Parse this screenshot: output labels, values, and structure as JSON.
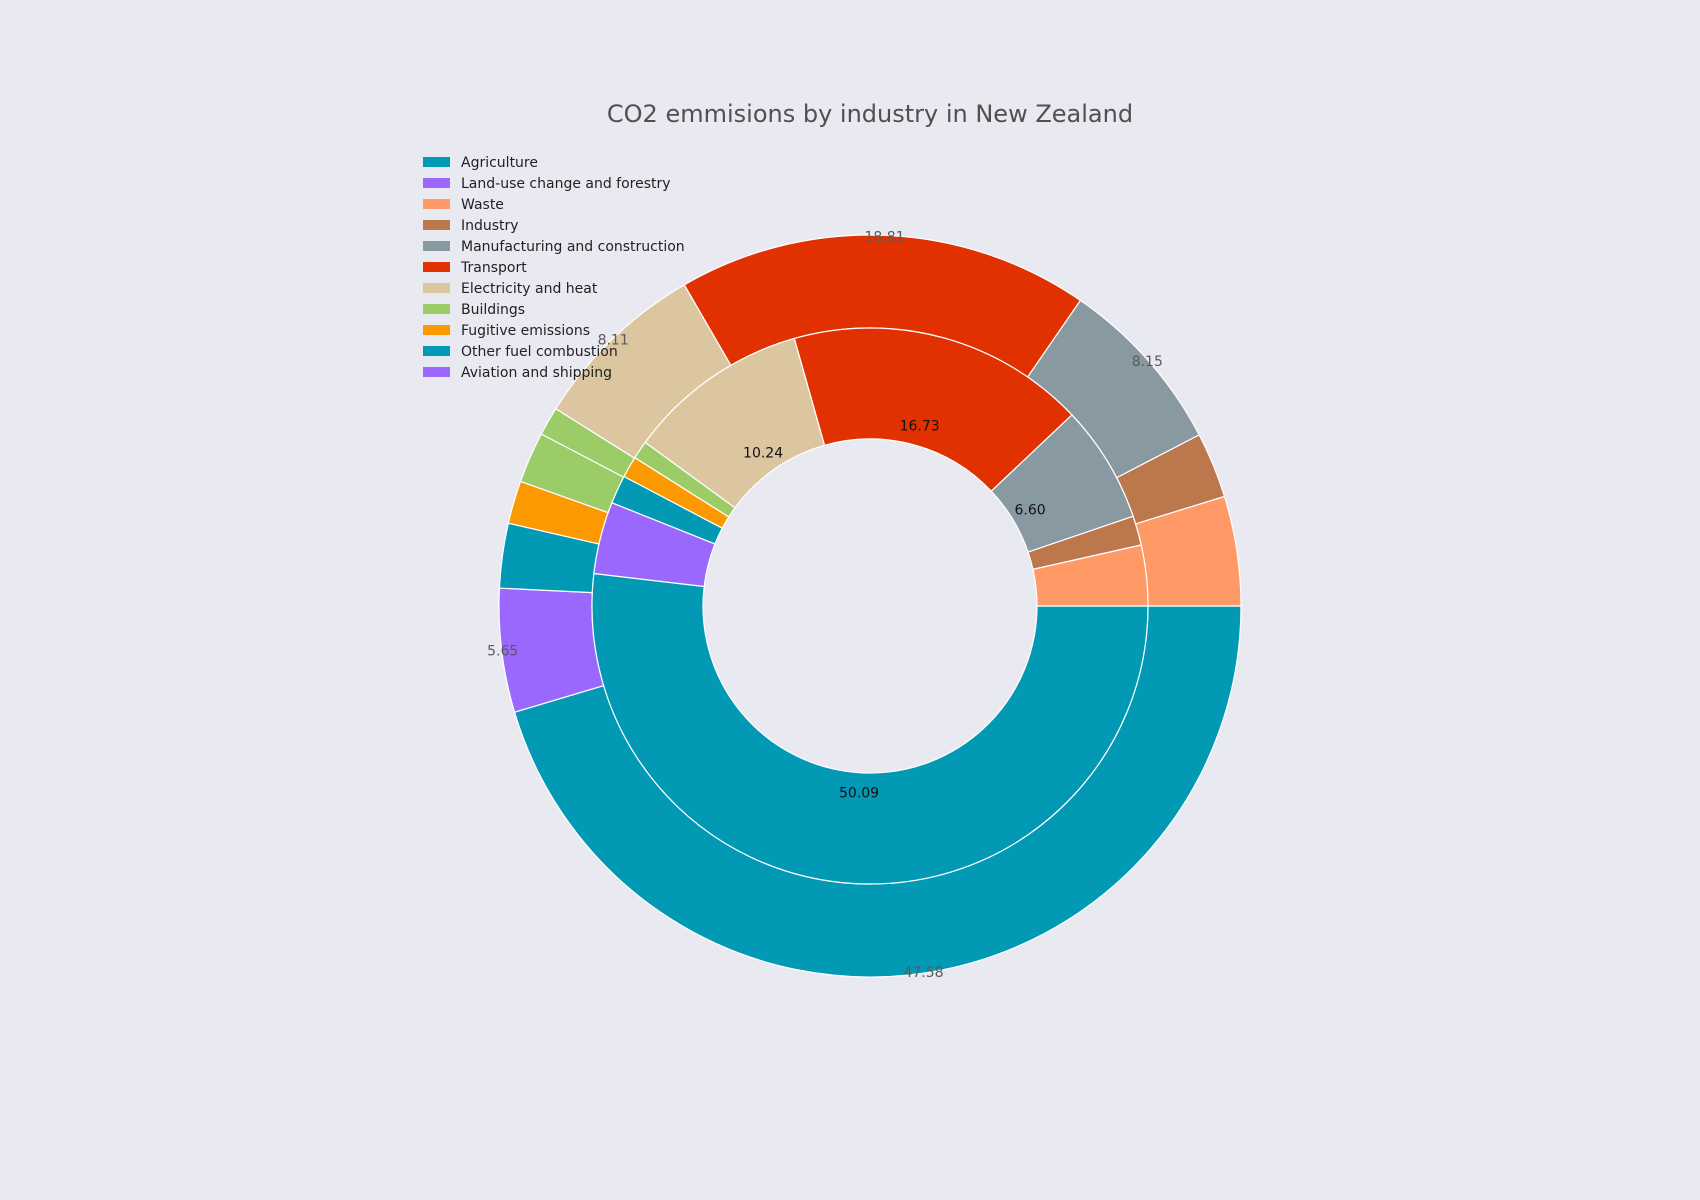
{
  "chart_data": {
    "type": "pie",
    "title": "CO2 emmisions by industry in New Zealand",
    "outer": {
      "values": [
        47.58,
        5.65,
        2.95,
        1.96,
        2.33,
        1.31,
        8.11,
        18.81,
        8.15,
        3.0,
        5.0
      ],
      "colors": [
        "#0199b4",
        "#9a68fc",
        "#0199b4",
        "#fc9900",
        "#9ccc68",
        "#9ccc68",
        "#dbc6a0",
        "#e23100",
        "#8899a2",
        "#bc774d",
        "#ff9966"
      ],
      "labels": [
        "47.58",
        "5.65",
        "",
        "",
        "",
        "",
        "8.11",
        "18.81",
        "8.15",
        "",
        ""
      ]
    },
    "inner": {
      "values": [
        50.09,
        4.05,
        1.6,
        1.2,
        1.02,
        10.24,
        16.73,
        6.6,
        1.65,
        3.4
      ],
      "colors": [
        "#0199b4",
        "#9a68fc",
        "#0199b4",
        "#fc9900",
        "#9ccc68",
        "#dbc6a0",
        "#e23100",
        "#8899a2",
        "#bc774d",
        "#ff9966"
      ],
      "labels": [
        "50.09",
        "",
        "",
        "",
        "",
        "10.24",
        "16.73",
        "6.60",
        "",
        ""
      ]
    },
    "legend": [
      {
        "name": "Agriculture",
        "color": "#0199b4"
      },
      {
        "name": "Land-use change and forestry",
        "color": "#9a68fc"
      },
      {
        "name": "Waste",
        "color": "#ff9966"
      },
      {
        "name": "Industry",
        "color": "#bc774d"
      },
      {
        "name": "Manufacturing and construction",
        "color": "#8899a2"
      },
      {
        "name": "Transport",
        "color": "#e23100"
      },
      {
        "name": "Electricity and heat",
        "color": "#dbc6a0"
      },
      {
        "name": "Buildings",
        "color": "#9ccc68"
      },
      {
        "name": "Fugitive emissions",
        "color": "#fc9900"
      },
      {
        "name": "Other fuel combustion",
        "color": "#0199b4"
      },
      {
        "name": "Aviation and shipping",
        "color": "#9a68fc"
      }
    ],
    "legend_position": "top-left"
  }
}
